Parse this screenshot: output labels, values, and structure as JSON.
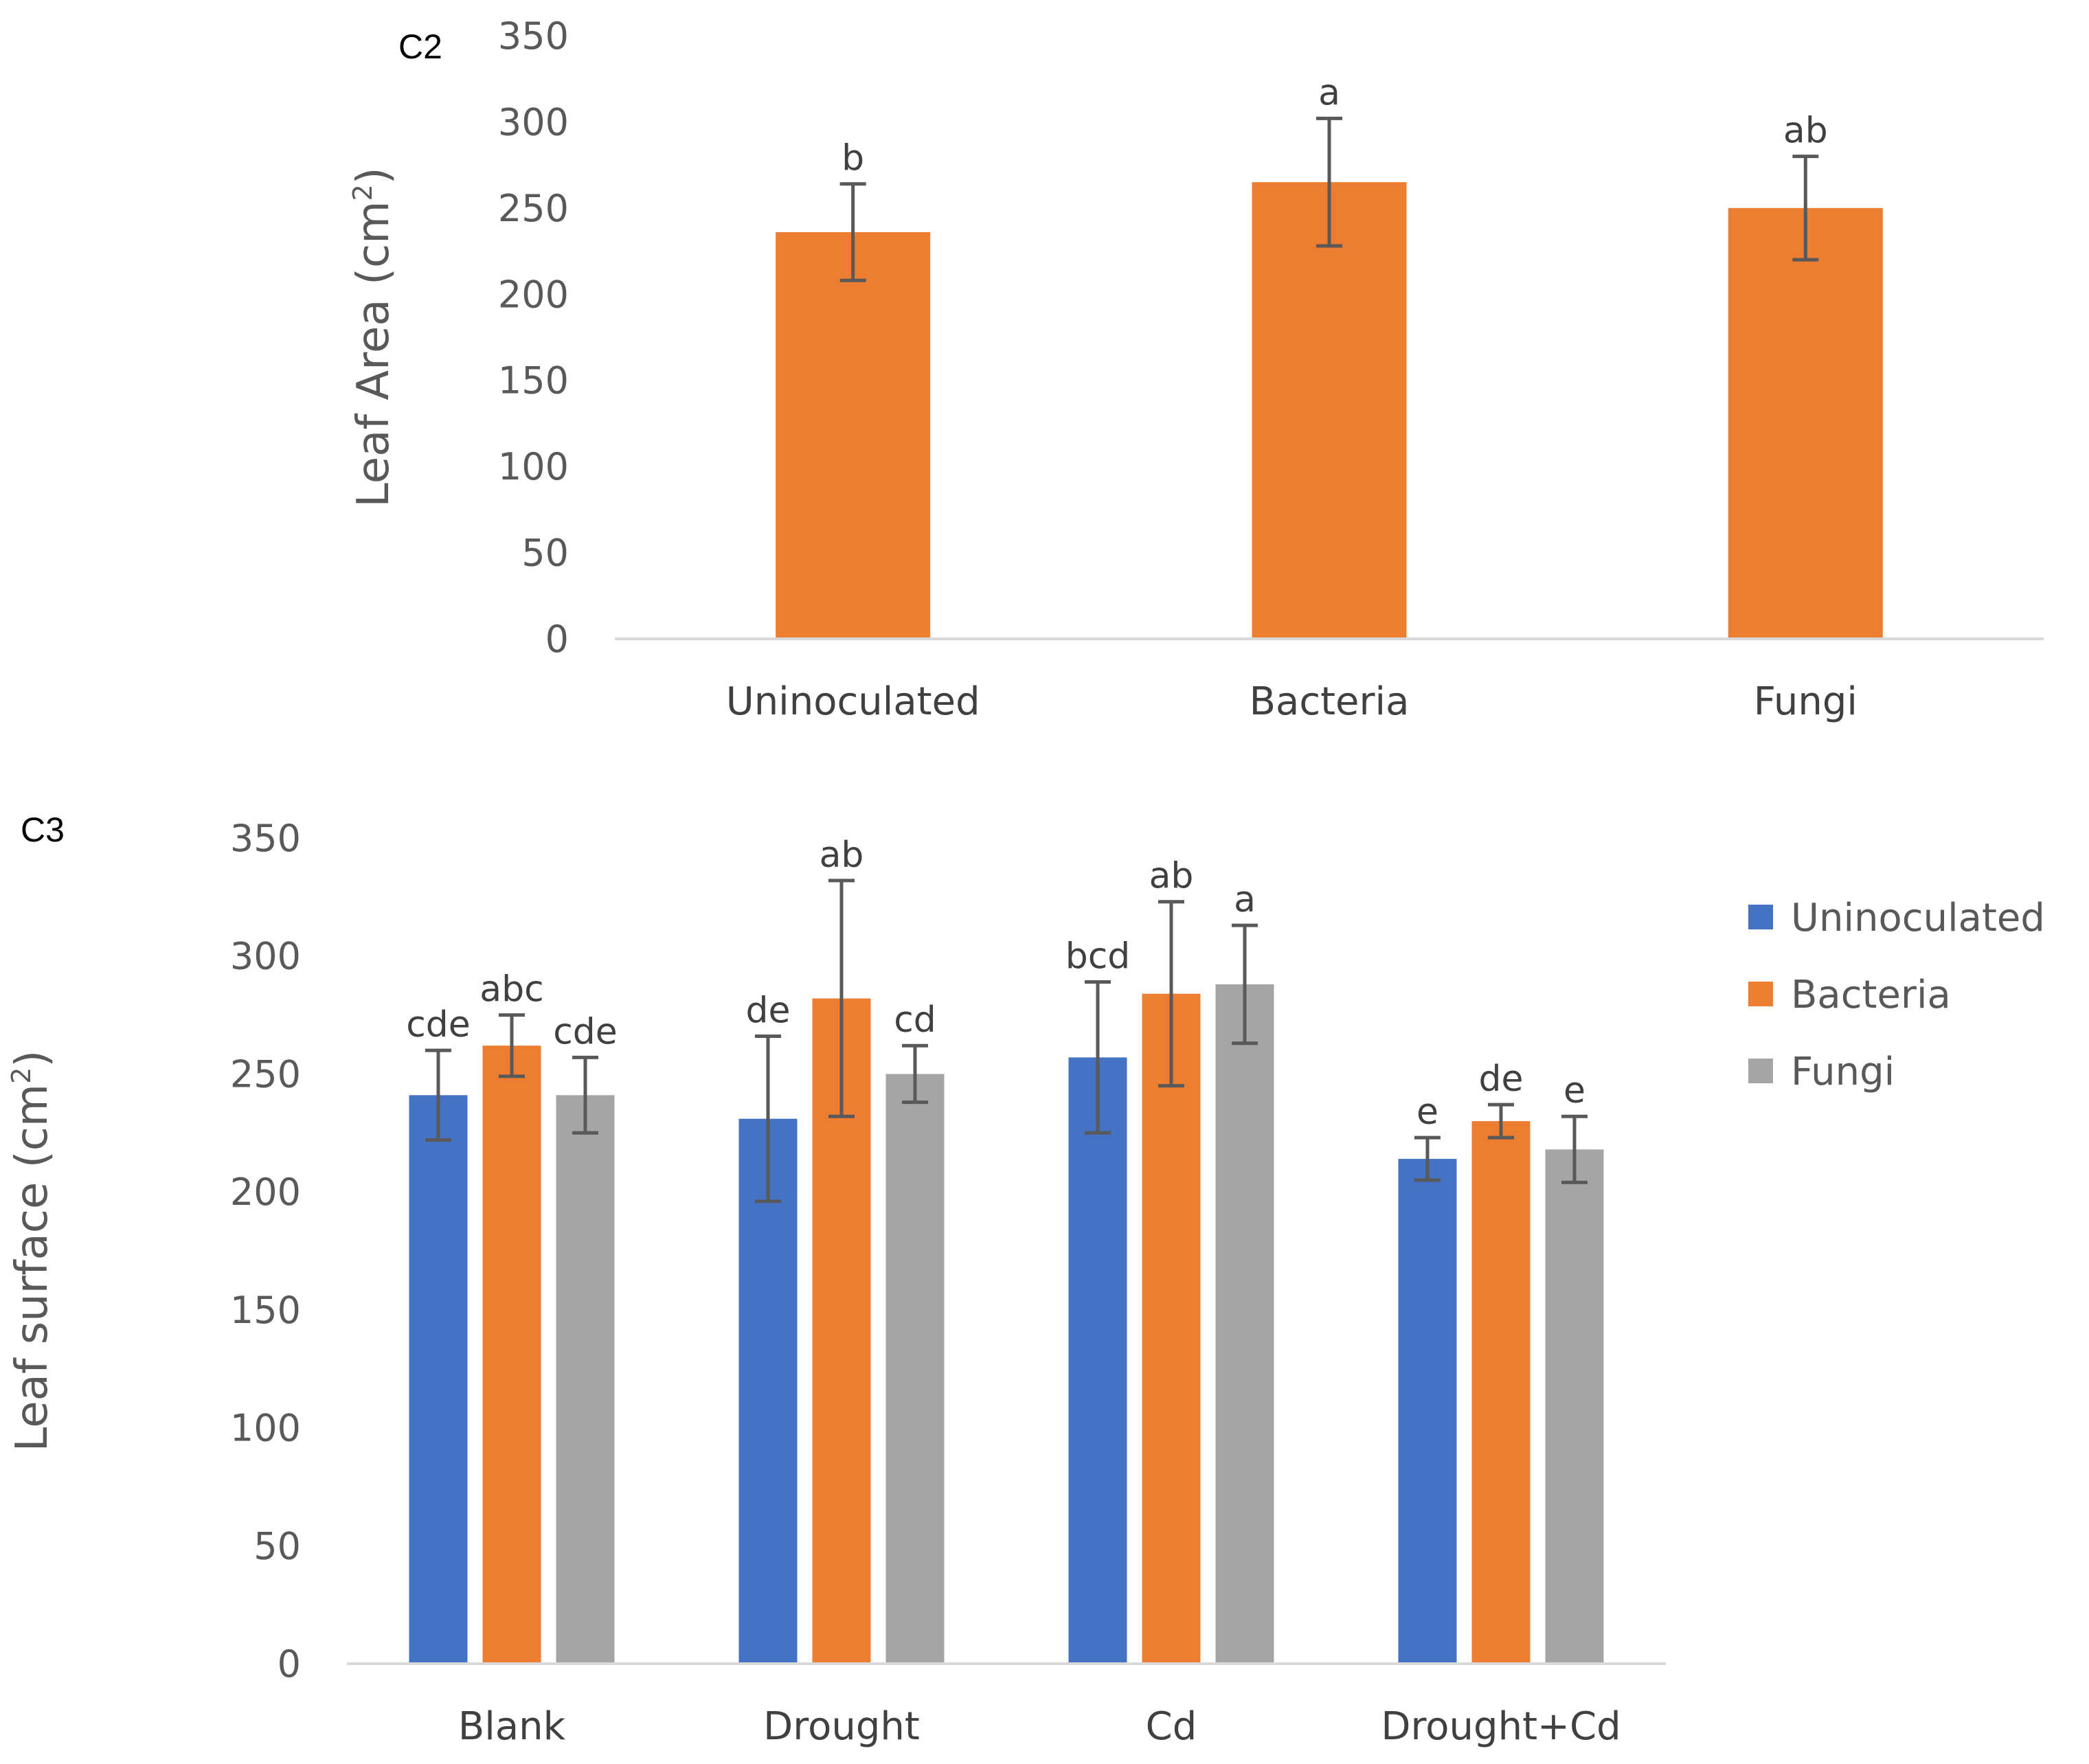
{
  "colors": {
    "uninoculated": "#4472C4",
    "bacteria": "#ED7D31",
    "fungi": "#A5A5A5",
    "axis": "#D9D9D9",
    "error_bar": "#595959"
  },
  "chart_data": [
    {
      "type": "bar",
      "panel_label": "C2",
      "ylabel": "Leaf Area (cm",
      "ylabel_sup": "2",
      "ylabel_close": ")",
      "xlabel": "",
      "ylim": [
        0,
        350
      ],
      "yticks": [
        "0",
        "50",
        "100",
        "150",
        "200",
        "250",
        "300",
        "350"
      ],
      "categories": [
        "Uninoculated",
        "Bacteria",
        "Fungi"
      ],
      "series": [
        {
          "name": "Bacteria",
          "color_key": "bacteria",
          "values": [
            236,
            265,
            250
          ],
          "errors": [
            28,
            37,
            30
          ],
          "letters": [
            "b",
            "a",
            "ab"
          ]
        }
      ],
      "legend": "none"
    },
    {
      "type": "bar",
      "panel_label": "C3",
      "ylabel": "Leaf surface (cm",
      "ylabel_sup": "2",
      "ylabel_close": ")",
      "xlabel": "",
      "ylim": [
        0,
        350
      ],
      "yticks": [
        "0",
        "50",
        "100",
        "150",
        "200",
        "250",
        "300",
        "350"
      ],
      "categories": [
        "Blank",
        "Drought",
        "Cd",
        "Drought+Cd"
      ],
      "series": [
        {
          "name": "Uninoculated",
          "color_key": "uninoculated",
          "values": [
            241,
            231,
            257,
            214
          ],
          "errors": [
            19,
            35,
            32,
            9
          ],
          "letters": [
            "cde",
            "de",
            "bcd",
            "e"
          ]
        },
        {
          "name": "Bacteria",
          "color_key": "bacteria",
          "values": [
            262,
            282,
            284,
            230
          ],
          "errors": [
            13,
            50,
            39,
            7
          ],
          "letters": [
            "abc",
            "ab",
            "ab",
            "de"
          ]
        },
        {
          "name": "Fungi",
          "color_key": "fungi",
          "values": [
            241,
            250,
            288,
            218
          ],
          "errors": [
            16,
            12,
            25,
            14
          ],
          "letters": [
            "cde",
            "cd",
            "a",
            "e"
          ]
        }
      ],
      "legend": "right"
    }
  ]
}
